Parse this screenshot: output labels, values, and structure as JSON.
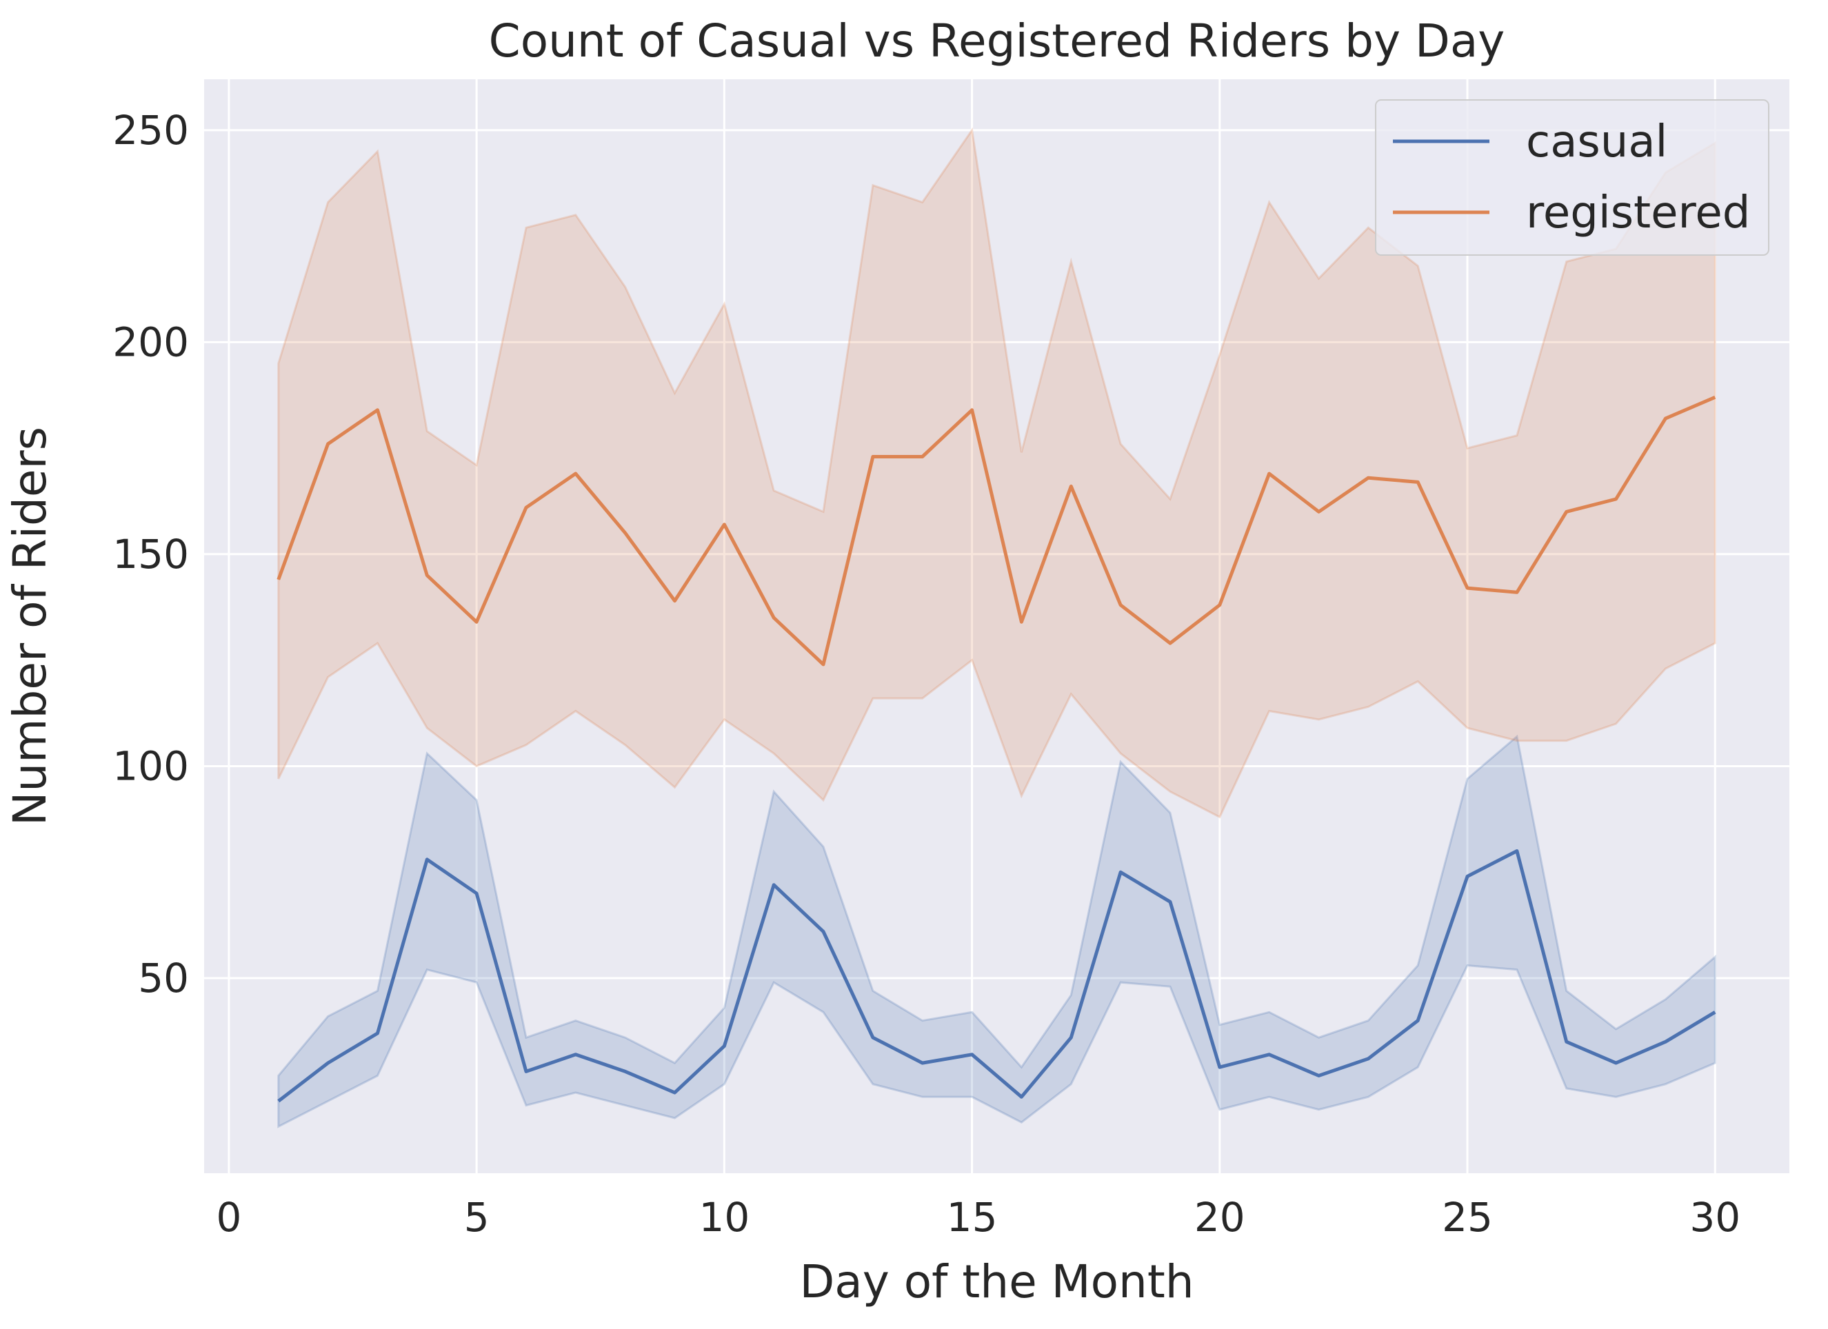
{
  "chart_data": {
    "type": "line",
    "title": "Count of Casual vs Registered Riders by Day",
    "xlabel": "Day of the Month",
    "ylabel": "Number of Riders",
    "xlim": [
      -0.5,
      31.5
    ],
    "ylim": [
      4,
      262
    ],
    "xticks": [
      0,
      5,
      10,
      15,
      20,
      25,
      30
    ],
    "yticks": [
      50,
      100,
      150,
      200,
      250
    ],
    "grid": true,
    "legend_position": "top-right",
    "x": [
      1,
      2,
      3,
      4,
      5,
      6,
      7,
      8,
      9,
      10,
      11,
      12,
      13,
      14,
      15,
      16,
      17,
      18,
      19,
      20,
      21,
      22,
      23,
      24,
      25,
      26,
      27,
      28,
      29,
      30
    ],
    "series": [
      {
        "name": "casual",
        "color": "#4c72b0",
        "values": [
          21,
          30,
          37,
          78,
          70,
          28,
          32,
          28,
          23,
          34,
          72,
          61,
          36,
          30,
          32,
          22,
          36,
          75,
          68,
          29,
          32,
          27,
          31,
          40,
          74,
          80,
          35,
          30,
          35,
          42
        ],
        "ci_lower": [
          15,
          21,
          27,
          52,
          49,
          20,
          23,
          20,
          17,
          25,
          49,
          42,
          25,
          22,
          22,
          16,
          25,
          49,
          48,
          19,
          22,
          19,
          22,
          29,
          53,
          52,
          24,
          22,
          25,
          30
        ],
        "ci_upper": [
          27,
          41,
          47,
          103,
          92,
          36,
          40,
          36,
          30,
          43,
          94,
          81,
          47,
          40,
          42,
          29,
          46,
          101,
          89,
          39,
          42,
          36,
          40,
          53,
          97,
          107,
          47,
          38,
          45,
          55
        ]
      },
      {
        "name": "registered",
        "color": "#dd8452",
        "values": [
          144,
          176,
          184,
          145,
          134,
          161,
          169,
          155,
          139,
          157,
          135,
          124,
          173,
          173,
          184,
          134,
          166,
          138,
          129,
          138,
          169,
          160,
          168,
          167,
          142,
          141,
          160,
          163,
          182,
          187
        ],
        "ci_lower": [
          97,
          121,
          129,
          109,
          100,
          105,
          113,
          105,
          95,
          111,
          103,
          92,
          116,
          116,
          125,
          93,
          117,
          103,
          94,
          88,
          113,
          111,
          114,
          120,
          109,
          106,
          106,
          110,
          123,
          129
        ],
        "ci_upper": [
          195,
          233,
          245,
          179,
          171,
          227,
          230,
          213,
          188,
          209,
          165,
          160,
          237,
          233,
          250,
          174,
          219,
          176,
          163,
          197,
          233,
          215,
          227,
          218,
          175,
          178,
          219,
          222,
          240,
          247
        ]
      }
    ]
  }
}
